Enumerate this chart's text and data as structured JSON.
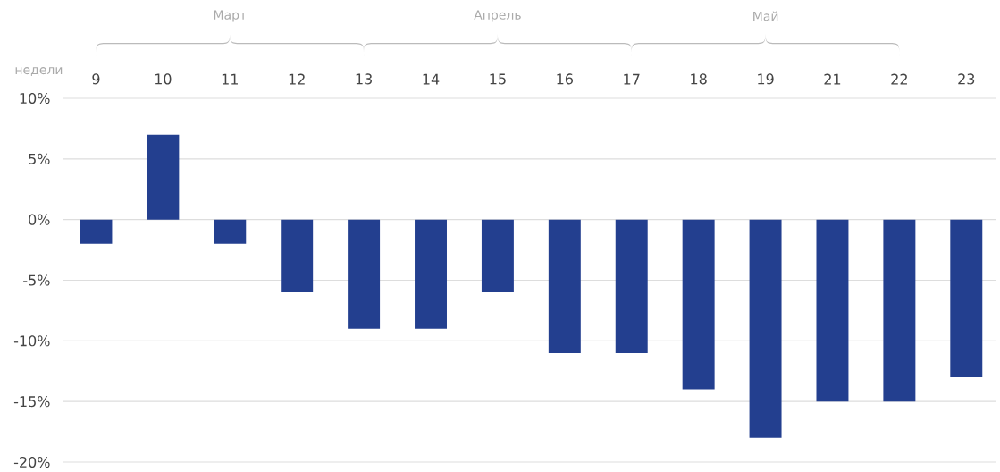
{
  "chart_data": {
    "type": "bar",
    "xlabel": "недели",
    "categories": [
      "9",
      "10",
      "11",
      "12",
      "13",
      "14",
      "15",
      "16",
      "17",
      "18",
      "19",
      "21",
      "22",
      "23"
    ],
    "values": [
      -2,
      7,
      -2,
      -6,
      -9,
      -9,
      -6,
      -11,
      -11,
      -14,
      -18,
      -15,
      -15,
      -13
    ],
    "color": "#233f8f",
    "ylim": [
      -20,
      10
    ],
    "yticks": [
      {
        "value": -20,
        "label": "-20%"
      },
      {
        "value": -15,
        "label": "-15%"
      },
      {
        "value": -10,
        "label": "-10%"
      },
      {
        "value": -5,
        "label": "-5%"
      },
      {
        "value": 0,
        "label": "0%"
      },
      {
        "value": 5,
        "label": "5%"
      },
      {
        "value": 10,
        "label": "10%"
      }
    ],
    "grid": "y",
    "annotations": [
      "Март",
      "Апрель",
      "Май"
    ]
  }
}
